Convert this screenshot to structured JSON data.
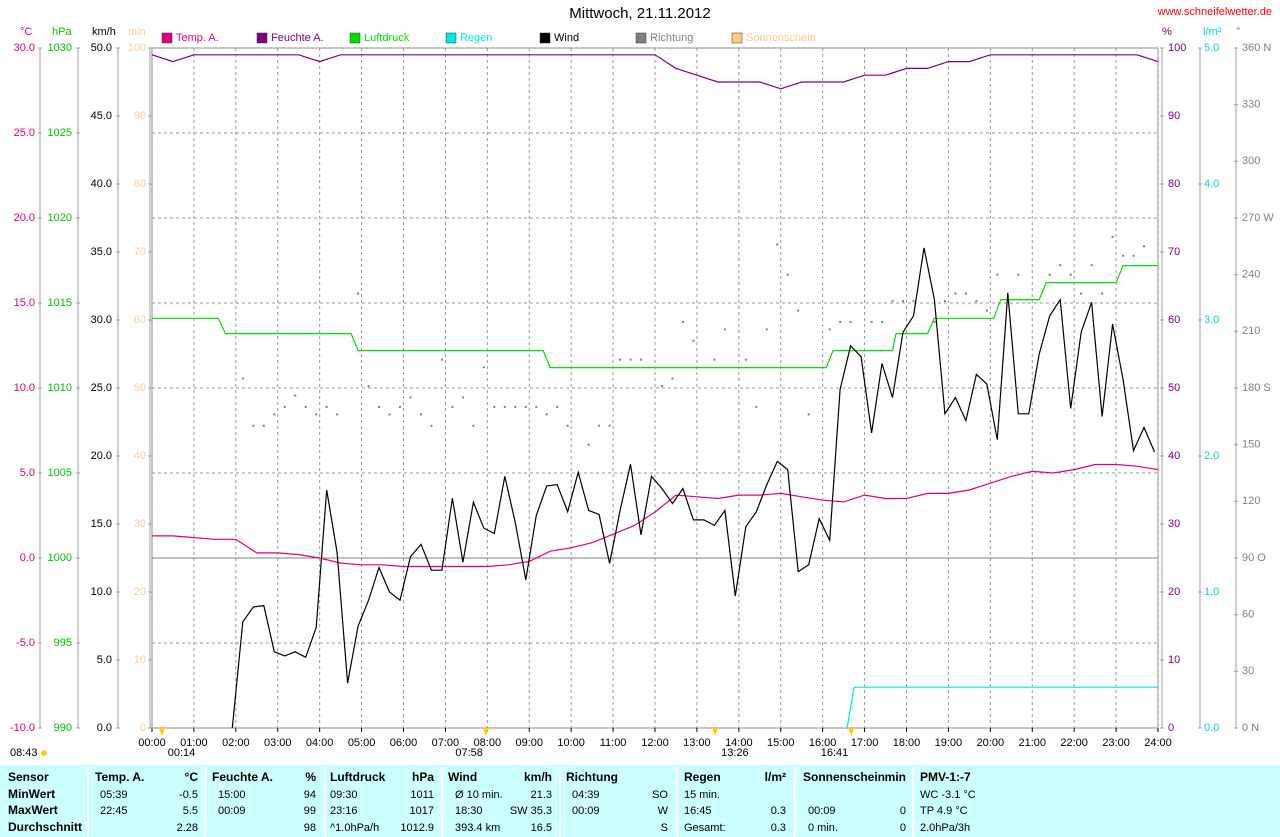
{
  "chart_data": {
    "type": "line",
    "title": "Mittwoch, 21.11.2012",
    "source": "www.schneifelwetter.de",
    "xlim": [
      "00:00",
      "24:00"
    ],
    "xticks": [
      "00:00",
      "01:00",
      "02:00",
      "03:00",
      "04:00",
      "05:00",
      "06:00",
      "07:00",
      "08:00",
      "09:00",
      "10:00",
      "11:00",
      "12:00",
      "13:00",
      "14:00",
      "15:00",
      "16:00",
      "17:00",
      "18:00",
      "19:00",
      "20:00",
      "21:00",
      "22:00",
      "23:00",
      "24:00"
    ],
    "grid": true,
    "axes": [
      {
        "unit": "°C",
        "color": "#e0007f",
        "lim": [
          -10,
          30
        ],
        "ticks": [
          {
            "value": -10,
            "label": "-10.0"
          },
          {
            "value": -5,
            "label": "-5.0"
          },
          {
            "value": 0,
            "label": "0.0"
          },
          {
            "value": 5,
            "label": "5.0"
          },
          {
            "value": 10,
            "label": "10.0"
          },
          {
            "value": 15,
            "label": "15.0"
          },
          {
            "value": 20,
            "label": "20.0"
          },
          {
            "value": 25,
            "label": "25.0"
          },
          {
            "value": 30,
            "label": "30.0"
          }
        ]
      },
      {
        "unit": "hPa",
        "color": "#00c000",
        "lim": [
          990,
          1030
        ],
        "ticks": [
          990,
          995,
          1000,
          1005,
          1010,
          1015,
          1020,
          1025,
          1030
        ]
      },
      {
        "unit": "km/h",
        "color": "#000000",
        "lim": [
          0,
          50
        ],
        "ticks": [
          {
            "value": 0,
            "label": "0.0"
          },
          {
            "value": 5,
            "label": "5.0"
          },
          {
            "value": 10,
            "label": "10.0"
          },
          {
            "value": 15,
            "label": "15.0"
          },
          {
            "value": 20,
            "label": "20.0"
          },
          {
            "value": 25,
            "label": "25.0"
          },
          {
            "value": 30,
            "label": "30.0"
          },
          {
            "value": 35,
            "label": "35.0"
          },
          {
            "value": 40,
            "label": "40.0"
          },
          {
            "value": 45,
            "label": "45.0"
          },
          {
            "value": 50,
            "label": "50.0"
          }
        ]
      },
      {
        "unit": "min",
        "color": "#ffcc99",
        "lim": [
          0,
          100
        ],
        "ticks": [
          0,
          10,
          20,
          30,
          40,
          50,
          60,
          70,
          80,
          90,
          100
        ]
      },
      {
        "unit": "%",
        "color": "#800080",
        "lim": [
          0,
          100
        ],
        "ticks": [
          0,
          10,
          20,
          30,
          40,
          50,
          60,
          70,
          80,
          90,
          100
        ]
      },
      {
        "unit": "l/m²",
        "color": "#00d8d8",
        "lim": [
          0,
          5
        ],
        "ticks": [
          {
            "value": 0,
            "label": "0.0"
          },
          {
            "value": 1,
            "label": "1.0"
          },
          {
            "value": 2,
            "label": "2.0"
          },
          {
            "value": 3,
            "label": "3.0"
          },
          {
            "value": 4,
            "label": "4.0"
          },
          {
            "value": 5,
            "label": "5.0"
          }
        ]
      },
      {
        "unit": "°",
        "color": "#808080",
        "lim": [
          0,
          360
        ],
        "ticks": [
          {
            "value": 0,
            "label": "0 N"
          },
          30,
          60,
          {
            "value": 90,
            "label": "90 O"
          },
          120,
          150,
          {
            "value": 180,
            "label": "180 S"
          },
          210,
          240,
          {
            "value": 270,
            "label": "270 W"
          },
          300,
          330,
          {
            "value": 360,
            "label": "360 N"
          }
        ]
      }
    ],
    "series": [
      {
        "name": "Temp. A.",
        "color": "#e0007f",
        "axis": 0,
        "x": [
          "00:00",
          "00:30",
          "01:00",
          "01:30",
          "02:00",
          "02:30",
          "03:00",
          "03:30",
          "04:00",
          "04:30",
          "05:00",
          "05:30",
          "06:00",
          "06:30",
          "07:00",
          "07:30",
          "08:00",
          "08:30",
          "09:00",
          "09:30",
          "10:00",
          "10:30",
          "11:00",
          "11:30",
          "12:00",
          "12:30",
          "13:00",
          "13:30",
          "14:00",
          "14:30",
          "15:00",
          "15:30",
          "16:00",
          "16:30",
          "17:00",
          "17:30",
          "18:00",
          "18:30",
          "19:00",
          "19:30",
          "20:00",
          "20:30",
          "21:00",
          "21:30",
          "22:00",
          "22:30",
          "23:00",
          "23:30",
          "24:00"
        ],
        "values": [
          1.3,
          1.3,
          1.2,
          1.1,
          1.1,
          0.3,
          0.3,
          0.2,
          0.0,
          -0.3,
          -0.4,
          -0.4,
          -0.5,
          -0.5,
          -0.5,
          -0.5,
          -0.5,
          -0.4,
          -0.2,
          0.4,
          0.6,
          0.9,
          1.4,
          1.9,
          2.7,
          3.7,
          3.6,
          3.5,
          3.7,
          3.7,
          3.8,
          3.6,
          3.4,
          3.3,
          3.7,
          3.5,
          3.5,
          3.8,
          3.8,
          4.0,
          4.4,
          4.8,
          5.1,
          5.0,
          5.2,
          5.5,
          5.5,
          5.4,
          5.2
        ]
      },
      {
        "name": "Feuchte A.",
        "color": "#800080",
        "axis": 4,
        "x": [
          "00:00",
          "00:30",
          "01:00",
          "01:30",
          "02:00",
          "02:30",
          "03:00",
          "03:30",
          "04:00",
          "04:30",
          "05:00",
          "05:30",
          "06:00",
          "06:30",
          "07:00",
          "07:30",
          "08:00",
          "08:30",
          "09:00",
          "09:30",
          "10:00",
          "10:30",
          "11:00",
          "11:30",
          "12:00",
          "12:30",
          "13:00",
          "13:30",
          "14:00",
          "14:30",
          "15:00",
          "15:30",
          "16:00",
          "16:30",
          "17:00",
          "17:30",
          "18:00",
          "18:30",
          "19:00",
          "19:30",
          "20:00",
          "20:30",
          "21:00",
          "21:30",
          "22:00",
          "22:30",
          "23:00",
          "23:30",
          "24:00"
        ],
        "values": [
          99,
          98,
          99,
          99,
          99,
          99,
          99,
          99,
          98,
          99,
          99,
          99,
          99,
          99,
          99,
          99,
          99,
          99,
          99,
          99,
          99,
          99,
          99,
          99,
          99,
          97,
          96,
          95,
          95,
          95,
          94,
          95,
          95,
          95,
          96,
          96,
          97,
          97,
          98,
          98,
          99,
          99,
          99,
          99,
          99,
          99,
          99,
          99,
          98
        ]
      },
      {
        "name": "Luftdruck",
        "color": "#00e000",
        "axis": 1,
        "x": [
          "00:00",
          "01:35",
          "01:45",
          "04:45",
          "04:55",
          "09:20",
          "09:30",
          "16:05",
          "16:15",
          "17:40",
          "17:45",
          "18:30",
          "18:40",
          "20:05",
          "20:15",
          "21:10",
          "21:20",
          "23:00",
          "23:10",
          "24:00"
        ],
        "values": [
          1014.1,
          1014.1,
          1013.2,
          1013.2,
          1012.2,
          1012.2,
          1011.2,
          1011.2,
          1012.2,
          1012.2,
          1013.2,
          1013.2,
          1014.1,
          1014.1,
          1015.2,
          1015.2,
          1016.2,
          1016.2,
          1017.2,
          1017.2
        ]
      },
      {
        "name": "Regen",
        "color": "#00e8e8",
        "axis": 5,
        "x": [
          "16:35",
          "16:45",
          "24:00"
        ],
        "values": [
          0,
          0.3,
          0.3
        ]
      },
      {
        "name": "Wind",
        "color": "#000000",
        "axis": 2,
        "x": [
          "01:55",
          "02:10",
          "02:25",
          "02:40",
          "02:55",
          "03:10",
          "03:25",
          "03:40",
          "03:55",
          "04:10",
          "04:25",
          "04:40",
          "04:55",
          "05:10",
          "05:25",
          "05:40",
          "05:55",
          "06:10",
          "06:25",
          "06:40",
          "06:55",
          "07:10",
          "07:25",
          "07:40",
          "07:55",
          "08:10",
          "08:25",
          "08:40",
          "08:55",
          "09:10",
          "09:25",
          "09:40",
          "09:55",
          "10:10",
          "10:25",
          "10:40",
          "10:55",
          "11:10",
          "11:25",
          "11:40",
          "11:55",
          "12:10",
          "12:25",
          "12:40",
          "12:55",
          "13:10",
          "13:25",
          "13:40",
          "13:55",
          "14:10",
          "14:25",
          "14:40",
          "14:55",
          "15:10",
          "15:25",
          "15:40",
          "15:55",
          "16:10",
          "16:25",
          "16:40",
          "16:55",
          "17:10",
          "17:25",
          "17:40",
          "17:55",
          "18:10",
          "18:25",
          "18:40",
          "18:55",
          "19:10",
          "19:25",
          "19:40",
          "19:55",
          "20:10",
          "20:25",
          "20:40",
          "20:55",
          "21:10",
          "21:25",
          "21:40",
          "21:55",
          "22:10",
          "22:25",
          "22:40",
          "22:55",
          "23:10",
          "23:25",
          "23:40",
          "23:55"
        ],
        "values": [
          0,
          7.8,
          8.9,
          9.0,
          5.6,
          5.3,
          5.6,
          5.2,
          7.4,
          17.5,
          12.9,
          3.3,
          7.5,
          9.4,
          11.8,
          10,
          9.4,
          12.6,
          13.5,
          11.6,
          11.6,
          16.9,
          12.2,
          16.6,
          14.7,
          14.3,
          18.5,
          15.1,
          10.9,
          15.6,
          17.8,
          17.9,
          15.9,
          18.8,
          16,
          15.7,
          12.1,
          16,
          19.4,
          14.2,
          18.5,
          17.6,
          16.5,
          17.6,
          15.3,
          15.3,
          14.9,
          16,
          9.7,
          14.8,
          15.9,
          17.9,
          19.6,
          19,
          11.5,
          12,
          15.4,
          13.8,
          24.9,
          28.1,
          27.3,
          21.7,
          26.8,
          24.3,
          29.1,
          30.3,
          35.3,
          31.5,
          23.1,
          24.3,
          22.6,
          26,
          25.3,
          21.2,
          32,
          23.1,
          23.1,
          27.5,
          30.3,
          31.5,
          23.5,
          29.1,
          31.3,
          22.9,
          29.7,
          25.6,
          20.4,
          22.1,
          20.3
        ]
      },
      {
        "name": "Richtung",
        "color": "#808080",
        "axis": 6,
        "type": "scatter",
        "x": [
          "02:10",
          "02:25",
          "02:40",
          "02:55",
          "03:10",
          "03:25",
          "03:40",
          "03:55",
          "04:10",
          "04:25",
          "04:55",
          "05:10",
          "05:25",
          "05:40",
          "05:55",
          "06:10",
          "06:25",
          "06:40",
          "06:55",
          "07:10",
          "07:25",
          "07:40",
          "07:55",
          "08:10",
          "08:25",
          "08:40",
          "08:55",
          "09:10",
          "09:25",
          "09:40",
          "09:55",
          "10:25",
          "10:40",
          "10:55",
          "11:10",
          "11:25",
          "11:40",
          "12:10",
          "12:25",
          "12:40",
          "12:55",
          "13:25",
          "13:40",
          "14:10",
          "14:25",
          "14:40",
          "14:55",
          "15:10",
          "15:25",
          "15:40",
          "16:10",
          "16:25",
          "16:40",
          "17:10",
          "17:25",
          "17:40",
          "17:55",
          "18:10",
          "18:40",
          "18:55",
          "19:10",
          "19:25",
          "19:40",
          "19:55",
          "20:10",
          "20:40",
          "21:25",
          "21:40",
          "21:55",
          "22:10",
          "22:25",
          "22:40",
          "22:55",
          "23:10",
          "23:25",
          "23:40"
        ],
        "values": [
          185,
          160,
          160,
          166,
          170,
          176,
          170,
          166,
          170,
          166,
          230,
          181,
          170,
          166,
          170,
          175,
          166,
          160,
          195,
          170,
          175,
          160,
          191,
          170,
          170,
          170,
          170,
          170,
          166,
          170,
          160,
          150,
          160,
          160,
          195,
          195,
          195,
          181,
          185,
          215,
          205,
          195,
          211,
          195,
          170,
          211,
          256,
          240,
          221,
          166,
          211,
          215,
          215,
          215,
          215,
          226,
          226,
          226,
          215,
          226,
          230,
          230,
          226,
          221,
          240,
          240,
          240,
          245,
          240,
          230,
          245,
          230,
          260,
          250,
          250,
          255
        ]
      },
      {
        "name": "Sonnenschein",
        "color": "#ffcc80",
        "axis": 3,
        "x": [],
        "values": []
      }
    ],
    "corner_time": "08:43",
    "annotations": [
      "00:14",
      "07:58",
      "13:26",
      "16:41"
    ]
  },
  "table": {
    "corner": "Sensor",
    "row_labels": [
      "MinWert",
      "MaxWert",
      "Durchschnitt"
    ],
    "columns": [
      {
        "header": "Temp. A.",
        "unit": "°C",
        "rows": [
          [
            "05:39",
            "-0.5"
          ],
          [
            "22:45",
            "5.5"
          ],
          [
            null,
            "2.28"
          ]
        ]
      },
      {
        "header": "Feuchte A.",
        "unit": "%",
        "rows": [
          [
            "15:00",
            "94"
          ],
          [
            "00:09",
            "99"
          ],
          [
            null,
            "98"
          ]
        ]
      },
      {
        "header": "Luftdruck",
        "unit": "hPa",
        "rows": [
          [
            "09:30",
            "1011"
          ],
          [
            "23:16",
            "1017"
          ],
          [
            "^1.0hPa/h",
            "1012.9"
          ]
        ]
      },
      {
        "header": "Wind",
        "unit": "km/h",
        "rows": [
          [
            "Ø 10 min.",
            "21.3"
          ],
          [
            "18:30",
            "SW 35.3"
          ],
          [
            "393.4 km",
            "16.5"
          ]
        ]
      },
      {
        "header": "Richtung",
        "rows": [
          [
            "04:39",
            "SO"
          ],
          [
            "00:09",
            "W"
          ],
          [
            null,
            "S"
          ]
        ]
      },
      {
        "header": "Regen",
        "unit": "l/m²",
        "rows": [
          [
            "15 min.",
            null
          ],
          [
            "16:45",
            "0.3"
          ],
          [
            "Gesamt:",
            "0.3"
          ]
        ]
      },
      {
        "header": "Sonnenschein",
        "unit": "min",
        "rows": [
          [
            null,
            null
          ],
          [
            "00:09",
            "0"
          ],
          [
            "0 min.",
            "0"
          ]
        ]
      },
      {
        "header": "PMV-1:-7",
        "rows": [
          [
            "WC -3.1 °C",
            null
          ],
          [
            "TP 4.9 °C",
            null
          ],
          [
            "2.0hPa/3h",
            null
          ]
        ]
      }
    ]
  }
}
